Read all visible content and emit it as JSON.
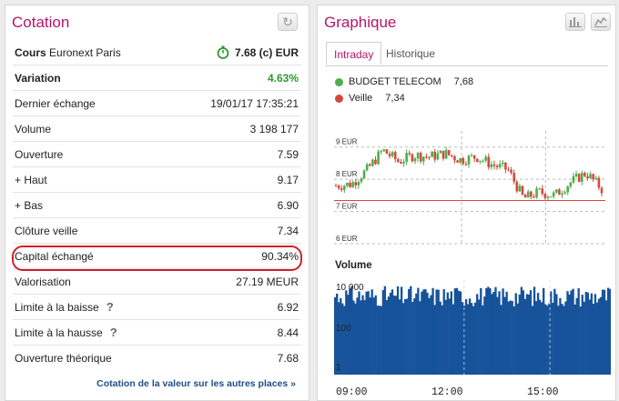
{
  "left": {
    "title": "Cotation",
    "rows": [
      {
        "label": "Cours",
        "sub": "Euronext Paris",
        "value": "7.68 (c) EUR"
      },
      {
        "label": "Variation",
        "value": "4.63%"
      },
      {
        "label": "Dernier échange",
        "value": "19/01/17 17:35:21"
      },
      {
        "label": "Volume",
        "value": "3 198 177"
      },
      {
        "label": "Ouverture",
        "value": "7.59"
      },
      {
        "label": "+ Haut",
        "value": "9.17"
      },
      {
        "label": "+ Bas",
        "value": "6.90"
      },
      {
        "label": "Clôture veille",
        "value": "7.34"
      },
      {
        "label": "Capital échangé",
        "value": "90.34%"
      },
      {
        "label": "Valorisation",
        "value": "27.19 MEUR"
      },
      {
        "label": "Limite à la baisse",
        "help": "?",
        "value": "6.92"
      },
      {
        "label": "Limite à la hausse",
        "help": "?",
        "value": "8.44"
      },
      {
        "label": "Ouverture théorique",
        "value": "7.68"
      }
    ],
    "link": "Cotation de la valeur sur les autres places »"
  },
  "right": {
    "title": "Graphique",
    "tabs": [
      "Intraday",
      "Historique"
    ],
    "legend": [
      {
        "name": "BUDGET TELECOM",
        "value": "7,68",
        "color": "#4cae4c"
      },
      {
        "name": "Veille",
        "value": "7,34",
        "color": "#d44a3a"
      }
    ],
    "volume_title": "Volume"
  },
  "colors": {
    "accent": "#b5156a",
    "up": "#4cae4c",
    "down": "#d44a3a",
    "volume": "#17539a",
    "highlight": "#d31f2a"
  },
  "icons": {
    "refresh": "refresh-icon",
    "bar": "bar-chart-icon",
    "line": "line-chart-icon"
  },
  "chart_data": [
    {
      "type": "line",
      "title": "",
      "y_ticks": [
        "9 EUR",
        "8 EUR",
        "7 EUR",
        "6 EUR"
      ],
      "ylim": [
        6,
        9.5
      ],
      "reference": 7.34,
      "series": [
        {
          "name": "BUDGET TELECOM",
          "x": [
            "09:00",
            "09:30",
            "10:00",
            "10:30",
            "11:00",
            "11:30",
            "12:00",
            "12:30",
            "13:00",
            "13:30",
            "14:00",
            "14:30",
            "15:00",
            "15:30",
            "16:00",
            "16:30",
            "17:00",
            "17:30"
          ],
          "values": [
            7.8,
            7.85,
            8.3,
            8.9,
            8.55,
            8.75,
            8.7,
            8.8,
            8.6,
            8.7,
            8.45,
            8.3,
            7.4,
            7.6,
            7.5,
            7.9,
            8.2,
            7.7
          ]
        }
      ]
    },
    {
      "type": "bar",
      "title": "Volume",
      "log_scale": true,
      "y_ticks": [
        "10 000",
        "100",
        "1"
      ],
      "x_ticks": [
        "09:00",
        "12:00",
        "15:00"
      ]
    }
  ]
}
